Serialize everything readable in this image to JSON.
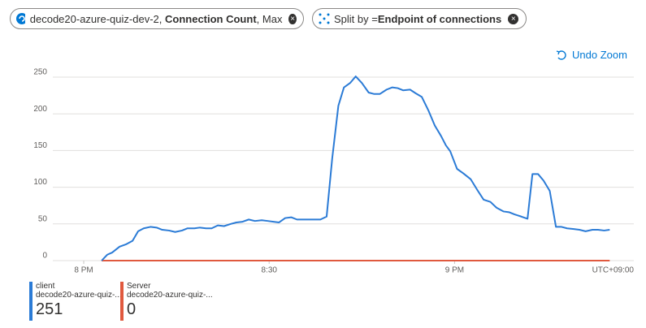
{
  "header": {
    "metric_resource": "decode20-azure-quiz-dev-2,",
    "metric_name": "Connection Count",
    "metric_agg": ", Max",
    "split_prefix": "Split by = ",
    "split_value": "Endpoint of connections",
    "undo": "Undo Zoom"
  },
  "chart_data": {
    "type": "line",
    "timezone": "UTC+09:00",
    "x": [
      2.9,
      3.8,
      4.6,
      5.8,
      6.8,
      7.9,
      8.8,
      9.7,
      10.8,
      11.8,
      12.7,
      13.8,
      14.8,
      15.9,
      16.8,
      17.9,
      18.8,
      19.8,
      20.7,
      21.7,
      22.7,
      23.8,
      24.7,
      25.7,
      26.7,
      27.7,
      28.8,
      29.8,
      30.7,
      31.6,
      32.6,
      33.6,
      34.5,
      35.6,
      36.5,
      37.4,
      38.3,
      39.3,
      40.2,
      41.2,
      42.1,
      43.1,
      44.0,
      45.0,
      46.1,
      47.0,
      47.9,
      49.0,
      49.9,
      50.8,
      51.7,
      52.8,
      53.7,
      54.7,
      55.8,
      56.8,
      57.8,
      58.6,
      59.3,
      60.4,
      61.4,
      62.6,
      63.7,
      64.7,
      65.8,
      66.8,
      67.9,
      68.8,
      69.7,
      70.8,
      71.8,
      72.6,
      73.5,
      74.4,
      75.4,
      76.4,
      77.3,
      78.2,
      79.3,
      80.2,
      81.2,
      82.3,
      83.2,
      84.2,
      85.1
    ],
    "series": [
      {
        "name": "client",
        "resource": "decode20-azure-quiz-...",
        "summary": 251,
        "color": "#2b7bd6",
        "values": [
          0,
          8,
          11,
          19,
          22,
          27,
          40,
          44,
          46,
          45,
          42,
          41,
          39,
          41,
          44,
          44,
          45,
          44,
          44,
          48,
          47,
          50,
          52,
          53,
          56,
          54,
          55,
          54,
          53,
          52,
          58,
          59,
          56,
          56,
          56,
          56,
          56,
          60,
          139,
          211,
          236,
          242,
          251,
          242,
          229,
          227,
          227,
          233,
          236,
          235,
          232,
          233,
          228,
          223,
          204,
          184,
          170,
          157,
          149,
          125,
          119,
          111,
          96,
          83,
          80,
          72,
          67,
          66,
          63,
          60,
          57,
          118,
          118,
          109,
          95,
          46,
          46,
          44,
          43,
          42,
          40,
          42,
          42,
          41,
          42
        ]
      },
      {
        "name": "Server",
        "resource": "decode20-azure-quiz-...",
        "summary": 0,
        "color": "#e0593e",
        "values": [
          0,
          0,
          0,
          0,
          0,
          0,
          0,
          0,
          0,
          0,
          0,
          0,
          0,
          0,
          0,
          0,
          0,
          0,
          0,
          0,
          0,
          0,
          0,
          0,
          0,
          0,
          0,
          0,
          0,
          0,
          0,
          0,
          0,
          0,
          0,
          0,
          0,
          0,
          0,
          0,
          0,
          0,
          0,
          0,
          0,
          0,
          0,
          0,
          0,
          0,
          0,
          0,
          0,
          0,
          0,
          0,
          0,
          0,
          0,
          0,
          0,
          0,
          0,
          0,
          0,
          0,
          0,
          0,
          0,
          0,
          0,
          0,
          0,
          0,
          0,
          0,
          0,
          0,
          0,
          0,
          0,
          0,
          0,
          0,
          0
        ]
      }
    ],
    "xlim": [
      -5,
      89
    ],
    "xticks": [
      {
        "value": 0,
        "label": "8 PM"
      },
      {
        "value": 30,
        "label": "8:30"
      },
      {
        "value": 60,
        "label": "9 PM"
      }
    ],
    "ylim": [
      0,
      250
    ],
    "yticks": [
      0,
      50,
      100,
      150,
      200,
      250
    ],
    "grid": true
  }
}
